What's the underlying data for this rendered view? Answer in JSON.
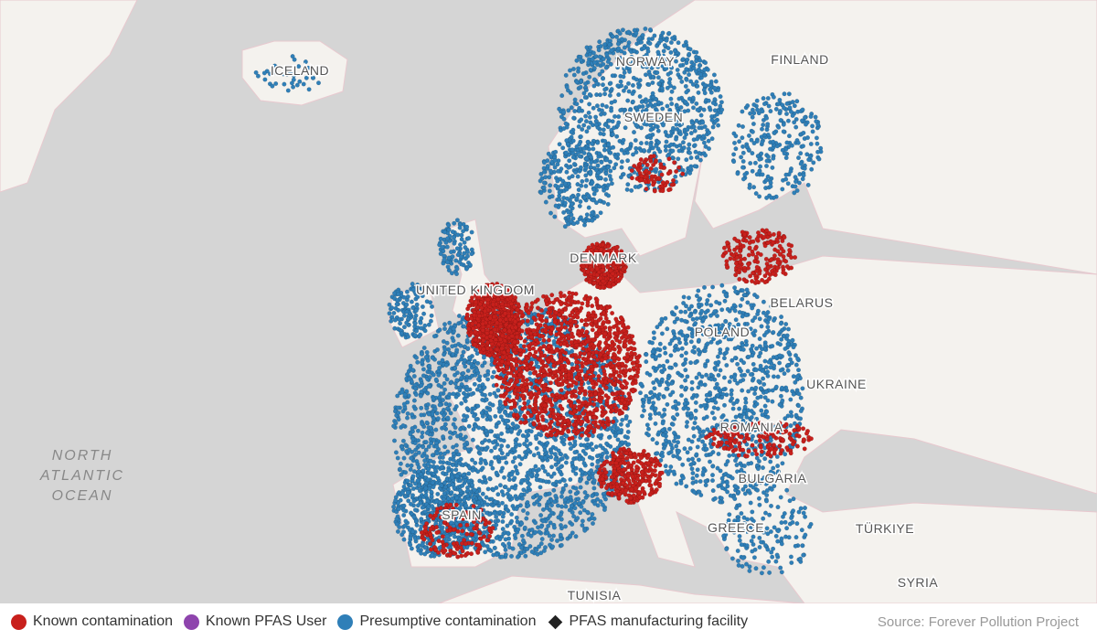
{
  "map": {
    "ocean_label": [
      "NORTH",
      "ATLANTIC",
      "OCEAN"
    ],
    "countries": [
      {
        "name": "ICELAND"
      },
      {
        "name": "NORWAY"
      },
      {
        "name": "SWEDEN"
      },
      {
        "name": "FINLAND"
      },
      {
        "name": "DENMARK"
      },
      {
        "name": "UNITED KINGDOM"
      },
      {
        "name": "BELARUS"
      },
      {
        "name": "POLAND"
      },
      {
        "name": "UKRAINE"
      },
      {
        "name": "ROMANIA"
      },
      {
        "name": "BULGARIA"
      },
      {
        "name": "GREECE"
      },
      {
        "name": "TÜRKIYE"
      },
      {
        "name": "SYRIA"
      },
      {
        "name": "TUNISIA"
      },
      {
        "name": "SPAIN"
      }
    ],
    "colors": {
      "sea": "#d5d5d5",
      "land": "#f4f2ee",
      "border": "#e8c9cf",
      "known": "#c8201c",
      "pfas_user": "#8e44ad",
      "presumptive": "#2f7fb8",
      "facility": "#222222"
    }
  },
  "legend": {
    "items": [
      {
        "label": "Known contamination",
        "color": "#c8201c",
        "shape": "circle"
      },
      {
        "label": "Known PFAS User",
        "color": "#8e44ad",
        "shape": "circle"
      },
      {
        "label": "Presumptive contamination",
        "color": "#2f7fb8",
        "shape": "circle"
      },
      {
        "label": "PFAS manufacturing facility",
        "color": "#222222",
        "shape": "diamond"
      }
    ],
    "source": "Source: Forever Pollution Project"
  }
}
